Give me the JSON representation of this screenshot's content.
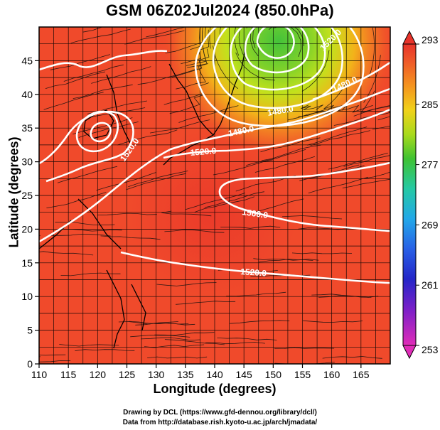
{
  "title": "GSM 06Z02Jul2024 (850.0hPa)",
  "axes": {
    "xlabel": "Longitude (degrees)",
    "ylabel": "Latitude  (degrees)",
    "x_ticks": [
      110,
      115,
      120,
      125,
      130,
      135,
      140,
      145,
      150,
      155,
      160,
      165
    ],
    "y_ticks": [
      0,
      5,
      10,
      15,
      20,
      25,
      30,
      35,
      40,
      45
    ],
    "xlim": [
      110,
      170
    ],
    "ylim": [
      0,
      50
    ]
  },
  "colorbar": {
    "ticks": [
      293,
      285,
      277,
      269,
      261,
      253
    ],
    "range": [
      253,
      293
    ]
  },
  "contour_labels": [
    "1480.0",
    "1520.0",
    "1520.0",
    "1560.0",
    "1520.0",
    "1480.0",
    "1520.0",
    "1480.0"
  ],
  "credits": {
    "line1": "Drawing by DCL (https://www.gfd-dennou.org/library/dcl/)",
    "line2": "Data from http://database.rish.kyoto-u.ac.jp/arch/jmadata/"
  },
  "colors": {
    "warm": "#ee3f28",
    "hot": "#f0602e",
    "mid": "#f5a21c",
    "cool": "#c2e21a",
    "cold": "#5ac92a"
  }
}
